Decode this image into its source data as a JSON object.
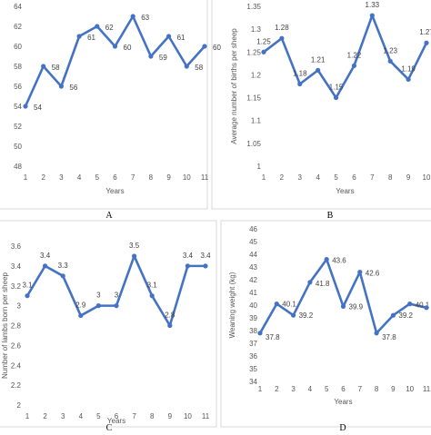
{
  "chart_data": [
    {
      "type": "line",
      "panel_label": "A",
      "xlabel": "Years",
      "ylabel": "",
      "categories": [
        "1",
        "2",
        "3",
        "4",
        "5",
        "6",
        "7",
        "8",
        "9",
        "10",
        "11"
      ],
      "ylim": [
        48,
        64
      ],
      "yticks": [
        "48",
        "50",
        "52",
        "54",
        "56",
        "58",
        "60",
        "62",
        "64"
      ],
      "values": [
        54,
        58,
        56,
        61,
        62,
        60,
        63,
        59,
        61,
        58,
        60
      ],
      "data_labels": [
        "54",
        "58",
        "56",
        "61",
        "62",
        "60",
        "63",
        "59",
        "61",
        "58",
        "60"
      ],
      "line_color": "#4472C4",
      "grid": false
    },
    {
      "type": "line",
      "panel_label": "B",
      "xlabel": "Years",
      "ylabel": "Average number of births per sheep",
      "categories": [
        "1",
        "2",
        "3",
        "4",
        "5",
        "6",
        "7",
        "8",
        "9",
        "10"
      ],
      "ylim": [
        1,
        1.35
      ],
      "yticks": [
        "1",
        "1.05",
        "1.1",
        "1.15",
        "1.2",
        "1.25",
        "1.3",
        "1.35"
      ],
      "values": [
        1.25,
        1.28,
        1.18,
        1.21,
        1.15,
        1.22,
        1.33,
        1.23,
        1.19,
        1.27
      ],
      "data_labels": [
        "1.25",
        "1.28",
        "1.18",
        "1.21",
        "1.15",
        "1.22",
        "1.33",
        "1.23",
        "1.19",
        "1.27"
      ],
      "line_color": "#4472C4",
      "grid": false
    },
    {
      "type": "line",
      "panel_label": "C",
      "xlabel": "Years",
      "ylabel": "Number of lambs born per sheep",
      "categories": [
        "1",
        "2",
        "3",
        "4",
        "5",
        "6",
        "7",
        "8",
        "9",
        "10",
        "11"
      ],
      "ylim": [
        2,
        3.6
      ],
      "yticks": [
        "2",
        "2.2",
        "2.4",
        "2.6",
        "2.8",
        "3",
        "3.2",
        "3.4",
        "3.6"
      ],
      "values": [
        3.1,
        3.4,
        3.3,
        2.9,
        3.0,
        3.0,
        3.5,
        3.1,
        2.8,
        3.4,
        3.4
      ],
      "data_labels": [
        "3.1",
        "3.4",
        "3.3",
        "2.9",
        "3",
        "3",
        "3.5",
        "3.1",
        "2.8",
        "3.4",
        "3.4"
      ],
      "line_color": "#4472C4",
      "grid": false
    },
    {
      "type": "line",
      "panel_label": "D",
      "xlabel": "Years",
      "ylabel": "Weaning weight (kg)",
      "categories": [
        "1",
        "2",
        "3",
        "4",
        "5",
        "6",
        "7",
        "8",
        "9",
        "10",
        "11"
      ],
      "ylim": [
        34,
        46
      ],
      "yticks": [
        "34",
        "35",
        "36",
        "37",
        "38",
        "39",
        "40",
        "41",
        "42",
        "43",
        "44",
        "45",
        "46"
      ],
      "values": [
        37.8,
        40.1,
        39.2,
        41.8,
        43.6,
        39.9,
        42.6,
        37.8,
        39.2,
        40.1,
        39.8
      ],
      "data_labels": [
        "37.8",
        "40.1",
        "39.2",
        "41.8",
        "43.6",
        "39.9",
        "42.6",
        "37.8",
        "39.2",
        "40.1",
        ""
      ],
      "line_color": "#4472C4",
      "grid": false
    }
  ]
}
